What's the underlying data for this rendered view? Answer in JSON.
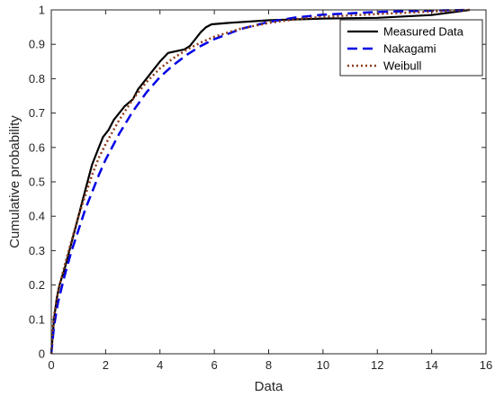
{
  "chart_data": {
    "type": "line",
    "xlabel": "Data",
    "ylabel": "Cumulative probability",
    "xlim": [
      0,
      16
    ],
    "ylim": [
      0,
      1
    ],
    "x_ticks": [
      "0",
      "2",
      "4",
      "6",
      "8",
      "10",
      "12",
      "14",
      "16"
    ],
    "y_ticks": [
      "0",
      "0.1",
      "0.2",
      "0.3",
      "0.4",
      "0.5",
      "0.6",
      "0.7",
      "0.8",
      "0.9",
      "1"
    ],
    "grid": false,
    "legend_position": "top-right",
    "series": [
      {
        "name": "Measured Data",
        "color": "#000000",
        "style": "solid",
        "points": [
          [
            0,
            0
          ],
          [
            0.05,
            0.05
          ],
          [
            0.1,
            0.1
          ],
          [
            0.2,
            0.16
          ],
          [
            0.3,
            0.2
          ],
          [
            0.5,
            0.25
          ],
          [
            0.7,
            0.31
          ],
          [
            0.9,
            0.37
          ],
          [
            1.1,
            0.43
          ],
          [
            1.3,
            0.49
          ],
          [
            1.5,
            0.55
          ],
          [
            1.7,
            0.59
          ],
          [
            1.9,
            0.63
          ],
          [
            2.1,
            0.65
          ],
          [
            2.3,
            0.68
          ],
          [
            2.5,
            0.7
          ],
          [
            2.7,
            0.72
          ],
          [
            3.0,
            0.74
          ],
          [
            3.2,
            0.77
          ],
          [
            3.5,
            0.8
          ],
          [
            3.8,
            0.83
          ],
          [
            4.0,
            0.85
          ],
          [
            4.3,
            0.875
          ],
          [
            4.6,
            0.88
          ],
          [
            4.9,
            0.885
          ],
          [
            5.1,
            0.895
          ],
          [
            5.3,
            0.915
          ],
          [
            5.5,
            0.935
          ],
          [
            5.7,
            0.95
          ],
          [
            5.9,
            0.958
          ],
          [
            6.5,
            0.962
          ],
          [
            8,
            0.97
          ],
          [
            10,
            0.975
          ],
          [
            12,
            0.977
          ],
          [
            14,
            0.985
          ],
          [
            15.4,
            1.0
          ]
        ]
      },
      {
        "name": "Nakagami",
        "color": "#0000e6",
        "style": "dashed",
        "points": [
          [
            0,
            0
          ],
          [
            0.1,
            0.08
          ],
          [
            0.25,
            0.15
          ],
          [
            0.5,
            0.23
          ],
          [
            0.75,
            0.3
          ],
          [
            1.0,
            0.36
          ],
          [
            1.25,
            0.42
          ],
          [
            1.5,
            0.47
          ],
          [
            1.75,
            0.52
          ],
          [
            2.0,
            0.565
          ],
          [
            2.5,
            0.64
          ],
          [
            3.0,
            0.705
          ],
          [
            3.5,
            0.76
          ],
          [
            4.0,
            0.805
          ],
          [
            4.5,
            0.84
          ],
          [
            5.0,
            0.87
          ],
          [
            5.5,
            0.895
          ],
          [
            6.0,
            0.915
          ],
          [
            7,
            0.945
          ],
          [
            8,
            0.965
          ],
          [
            9,
            0.978
          ],
          [
            10,
            0.986
          ],
          [
            12,
            0.994
          ],
          [
            14,
            0.998
          ],
          [
            15.4,
            1.0
          ]
        ]
      },
      {
        "name": "Weibull",
        "color": "#8b3a1a",
        "style": "dotted",
        "points": [
          [
            0,
            0
          ],
          [
            0.05,
            0.07
          ],
          [
            0.1,
            0.11
          ],
          [
            0.25,
            0.18
          ],
          [
            0.5,
            0.26
          ],
          [
            0.75,
            0.33
          ],
          [
            1.0,
            0.4
          ],
          [
            1.25,
            0.46
          ],
          [
            1.5,
            0.52
          ],
          [
            1.75,
            0.57
          ],
          [
            2.0,
            0.61
          ],
          [
            2.5,
            0.68
          ],
          [
            3.0,
            0.74
          ],
          [
            3.5,
            0.79
          ],
          [
            4.0,
            0.83
          ],
          [
            4.5,
            0.86
          ],
          [
            5.0,
            0.885
          ],
          [
            5.5,
            0.905
          ],
          [
            6.0,
            0.922
          ],
          [
            7,
            0.946
          ],
          [
            8,
            0.962
          ],
          [
            9,
            0.973
          ],
          [
            10,
            0.98
          ],
          [
            12,
            0.988
          ],
          [
            14,
            0.995
          ],
          [
            15.4,
            1.0
          ]
        ]
      }
    ]
  }
}
